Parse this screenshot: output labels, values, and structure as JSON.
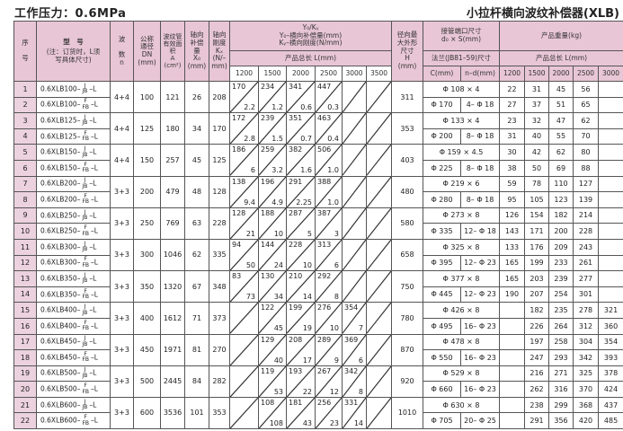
{
  "title_left": "工作压力：0.6MPa",
  "title_right": "小拉杆横向波纹补偿器(XLB)",
  "header": {
    "seq": "序\n\n号",
    "model": "型　号",
    "model_note": "(注：订货时，L须写具体尺寸)",
    "waves": "波\n\n数\nn",
    "dn": "公称\n通径\nDN\n(mm)",
    "area": "波纹管\n有效面\n积\nA\n(cm²)",
    "x0": "轴向\n补偿\n量\nX₀\n(mm)",
    "kx": "轴向\n刚度\nKₓ\n(N/–\nmm)",
    "yk": "Y₀/Kᵧ",
    "y0_desc": "Y₀–横向补偿量(mm)",
    "ky_desc": "Kᵧ–横向刚度(N/mm)",
    "length_label": "产品总长 L(mm)",
    "lengths": [
      "1200",
      "1500",
      "2000",
      "2500",
      "3000",
      "3500"
    ],
    "h": "径向最\n大外形\n尺寸\nH\n(mm)",
    "pipe": "接管端口尺寸\nd₀ × S(mm)",
    "flange": "法兰(JB81–59)尺寸",
    "c": "C(mm)",
    "nd": "n–d(mm)",
    "weight": "产品重量(kg)",
    "weight_length_label": "产品总长 L(mm)",
    "weight_lengths": [
      "1200",
      "1500",
      "2000",
      "2500",
      "3000"
    ]
  },
  "groups": [
    {
      "n": "4+4",
      "dn": "100",
      "a": "121",
      "x0": "26",
      "kx": "208",
      "y0": [
        "170",
        "234",
        "341",
        "447",
        "",
        ""
      ],
      "ky": [
        "2.2",
        "1.2",
        "0.6",
        "0.3",
        "",
        ""
      ],
      "h": "311",
      "pipe": "Φ 108 × 4",
      "c": "Φ 170",
      "nd": "4– Φ 18",
      "items": [
        {
          "seq": "1",
          "model": "0.6XLB100–",
          "sup": "J",
          "code": "JB",
          "suffix": "–L",
          "w": [
            "22",
            "31",
            "45",
            "56",
            ""
          ]
        },
        {
          "seq": "2",
          "model": "0.6XLB100–",
          "sup": "F",
          "code": "FB",
          "suffix": "–L",
          "w": [
            "27",
            "37",
            "51",
            "65",
            ""
          ]
        }
      ]
    },
    {
      "n": "4+4",
      "dn": "125",
      "a": "180",
      "x0": "34",
      "kx": "170",
      "y0": [
        "172",
        "239",
        "351",
        "463",
        "",
        ""
      ],
      "ky": [
        "2.8",
        "1.5",
        "0.7",
        "0.4",
        "",
        ""
      ],
      "h": "353",
      "pipe": "Φ 133 × 4",
      "c": "Φ 200",
      "nd": "8– Φ 18",
      "items": [
        {
          "seq": "3",
          "model": "0.6XLB125–",
          "sup": "J",
          "code": "JB",
          "suffix": "–L",
          "w": [
            "23",
            "32",
            "47",
            "62",
            ""
          ]
        },
        {
          "seq": "4",
          "model": "0.6XLB125–",
          "sup": "F",
          "code": "FB",
          "suffix": "–L",
          "w": [
            "31",
            "40",
            "55",
            "70",
            ""
          ]
        }
      ]
    },
    {
      "n": "4+4",
      "dn": "150",
      "a": "257",
      "x0": "45",
      "kx": "125",
      "y0": [
        "186",
        "259",
        "382",
        "506",
        "",
        ""
      ],
      "ky": [
        "6",
        "3.2",
        "1.6",
        "1.0",
        "",
        ""
      ],
      "h": "403",
      "pipe": "Φ 159 × 4.5",
      "c": "Φ 225",
      "nd": "8– Φ 18",
      "items": [
        {
          "seq": "5",
          "model": "0.6XLB150–",
          "sup": "J",
          "code": "JB",
          "suffix": "–L",
          "w": [
            "30",
            "42",
            "62",
            "80",
            ""
          ]
        },
        {
          "seq": "6",
          "model": "0.6XLB150–",
          "sup": "F",
          "code": "FB",
          "suffix": "–L",
          "w": [
            "38",
            "50",
            "69",
            "88",
            ""
          ]
        }
      ]
    },
    {
      "n": "3+3",
      "dn": "200",
      "a": "479",
      "x0": "48",
      "kx": "128",
      "y0": [
        "138",
        "196",
        "291",
        "388",
        "",
        ""
      ],
      "ky": [
        "9.4",
        "4.9",
        "2.25",
        "1.0",
        "",
        ""
      ],
      "h": "480",
      "pipe": "Φ 219 × 6",
      "c": "Φ 280",
      "nd": "8– Φ 18",
      "items": [
        {
          "seq": "7",
          "model": "0.6XLB200–",
          "sup": "J",
          "code": "JB",
          "suffix": "–L",
          "w": [
            "59",
            "78",
            "110",
            "127",
            ""
          ]
        },
        {
          "seq": "8",
          "model": "0.6XLB200–",
          "sup": "F",
          "code": "FB",
          "suffix": "–L",
          "w": [
            "95",
            "105",
            "123",
            "139",
            ""
          ]
        }
      ]
    },
    {
      "n": "3+3",
      "dn": "250",
      "a": "769",
      "x0": "63",
      "kx": "228",
      "y0": [
        "128",
        "188",
        "287",
        "387",
        "",
        ""
      ],
      "ky": [
        "21",
        "10",
        "5",
        "3",
        "",
        ""
      ],
      "h": "580",
      "pipe": "Φ 273 × 8",
      "c": "Φ 335",
      "nd": "12– Φ 18",
      "items": [
        {
          "seq": "9",
          "model": "0.6XLB250–",
          "sup": "J",
          "code": "JB",
          "suffix": "–L",
          "w": [
            "126",
            "154",
            "182",
            "214",
            ""
          ]
        },
        {
          "seq": "10",
          "model": "0.6XLB250–",
          "sup": "F",
          "code": "FB",
          "suffix": "–L",
          "w": [
            "143",
            "171",
            "200",
            "228",
            ""
          ]
        }
      ]
    },
    {
      "n": "3+3",
      "dn": "300",
      "a": "1046",
      "x0": "62",
      "kx": "335",
      "y0": [
        "94",
        "144",
        "228",
        "313",
        "",
        ""
      ],
      "ky": [
        "50",
        "24",
        "10",
        "6",
        "",
        ""
      ],
      "h": "658",
      "pipe": "Φ 325 × 8",
      "c": "Φ 395",
      "nd": "12– Φ 23",
      "items": [
        {
          "seq": "11",
          "model": "0.6XLB300–",
          "sup": "J",
          "code": "JB",
          "suffix": "–L",
          "w": [
            "133",
            "176",
            "209",
            "243",
            ""
          ]
        },
        {
          "seq": "12",
          "model": "0.6XLB300–",
          "sup": "F",
          "code": "FB",
          "suffix": "–L",
          "w": [
            "165",
            "199",
            "233",
            "261",
            ""
          ]
        }
      ]
    },
    {
      "n": "3+3",
      "dn": "350",
      "a": "1320",
      "x0": "67",
      "kx": "348",
      "y0": [
        "83",
        "130",
        "210",
        "292",
        "",
        ""
      ],
      "ky": [
        "73",
        "34",
        "14",
        "8",
        "",
        ""
      ],
      "h": "750",
      "pipe": "Φ 377 × 8",
      "c": "Φ 445",
      "nd": "12– Φ 23",
      "items": [
        {
          "seq": "13",
          "model": "0.6XLB350–",
          "sup": "J",
          "code": "JB",
          "suffix": "–L",
          "w": [
            "165",
            "203",
            "239",
            "277",
            ""
          ]
        },
        {
          "seq": "14",
          "model": "0.6XLB350–",
          "sup": "F",
          "code": "FB",
          "suffix": "–L",
          "w": [
            "190",
            "207",
            "254",
            "301",
            ""
          ]
        }
      ]
    },
    {
      "n": "3+3",
      "dn": "400",
      "a": "1612",
      "x0": "71",
      "kx": "373",
      "y0": [
        "",
        "122",
        "199",
        "276",
        "354",
        ""
      ],
      "ky": [
        "",
        "45",
        "19",
        "10",
        "7",
        ""
      ],
      "h": "780",
      "pipe": "Φ 426 × 8",
      "c": "Φ 495",
      "nd": "16– Φ 23",
      "items": [
        {
          "seq": "15",
          "model": "0.6XLB400–",
          "sup": "J",
          "code": "JB",
          "suffix": "–L",
          "w": [
            "",
            "182",
            "235",
            "278",
            "321"
          ]
        },
        {
          "seq": "16",
          "model": "0.6XLB400–",
          "sup": "F",
          "code": "FB",
          "suffix": "–L",
          "w": [
            "",
            "226",
            "264",
            "312",
            "360"
          ]
        }
      ]
    },
    {
      "n": "3+3",
      "dn": "450",
      "a": "1971",
      "x0": "81",
      "kx": "270",
      "y0": [
        "",
        "129",
        "208",
        "289",
        "369",
        ""
      ],
      "ky": [
        "",
        "40",
        "17",
        "9",
        "6",
        ""
      ],
      "h": "870",
      "pipe": "Φ 478 × 8",
      "c": "Φ 550",
      "nd": "16– Φ 23",
      "items": [
        {
          "seq": "17",
          "model": "0.6XLB450–",
          "sup": "J",
          "code": "JB",
          "suffix": "–L",
          "w": [
            "",
            "197",
            "258",
            "304",
            "354"
          ]
        },
        {
          "seq": "18",
          "model": "0.6XLB450–",
          "sup": "F",
          "code": "FB",
          "suffix": "–L",
          "w": [
            "",
            "247",
            "293",
            "342",
            "393"
          ]
        }
      ]
    },
    {
      "n": "3+3",
      "dn": "500",
      "a": "2445",
      "x0": "84",
      "kx": "282",
      "y0": [
        "",
        "119",
        "193",
        "267",
        "342",
        ""
      ],
      "ky": [
        "",
        "53",
        "22",
        "12",
        "8",
        ""
      ],
      "h": "920",
      "pipe": "Φ 529 × 8",
      "c": "Φ 660",
      "nd": "16– Φ 23",
      "items": [
        {
          "seq": "19",
          "model": "0.6XLB500–",
          "sup": "J",
          "code": "JB",
          "suffix": "–L",
          "w": [
            "",
            "216",
            "271",
            "325",
            "378"
          ]
        },
        {
          "seq": "20",
          "model": "0.6XLB500–",
          "sup": "F",
          "code": "FB",
          "suffix": "–L",
          "w": [
            "",
            "262",
            "316",
            "370",
            "424"
          ]
        }
      ]
    },
    {
      "n": "3+3",
      "dn": "600",
      "a": "3536",
      "x0": "101",
      "kx": "353",
      "y0": [
        "",
        "108",
        "181",
        "256",
        "331",
        ""
      ],
      "ky": [
        "",
        "108",
        "43",
        "23",
        "14",
        ""
      ],
      "h": "1010",
      "pipe": "Φ 630 × 8",
      "c": "Φ 705",
      "nd": "20– Φ 25",
      "items": [
        {
          "seq": "21",
          "model": "0.6XLB600–",
          "sup": "J",
          "code": "JB",
          "suffix": "–L",
          "w": [
            "",
            "238",
            "299",
            "368",
            "437"
          ]
        },
        {
          "seq": "22",
          "model": "0.6XLB600–",
          "sup": "F",
          "code": "FB",
          "suffix": "–L",
          "w": [
            "",
            "291",
            "356",
            "420",
            "485"
          ]
        }
      ]
    }
  ],
  "colors": {
    "header_bg": "#e8c6d5",
    "seq_bg": "#ecd2de",
    "border": "#555555"
  }
}
